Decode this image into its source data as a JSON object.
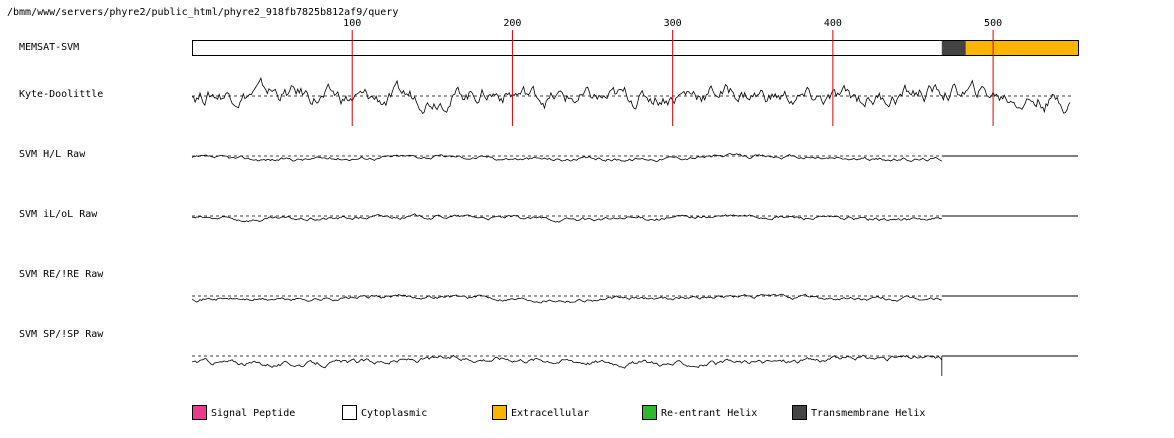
{
  "chart_data": {
    "type": "line",
    "path_label": "/bmm/www/servers/phyre2/public_html/phyre2_918fb7825b812af9/query",
    "x_ticks": [
      100,
      200,
      300,
      400,
      500
    ],
    "x_range": [
      0,
      553
    ],
    "memsat": {
      "label": "MEMSAT-SVM",
      "segments": [
        {
          "type": "Cytoplasmic",
          "start": 1,
          "end": 468
        },
        {
          "type": "Transmembrane Helix",
          "start": 469,
          "end": 483
        },
        {
          "type": "Extracellular",
          "start": 484,
          "end": 553
        }
      ]
    },
    "tracks": [
      {
        "name": "Kyte-Doolittle",
        "end": 548,
        "amp": 9,
        "scale": 1,
        "flat_after": false
      },
      {
        "name": "SVM H/L Raw",
        "end": 468,
        "amp": 3,
        "scale": 2,
        "flat_after": true
      },
      {
        "name": "SVM iL/oL Raw",
        "end": 468,
        "amp": 3,
        "scale": 3,
        "flat_after": true
      },
      {
        "name": "SVM RE/!RE Raw",
        "end": 468,
        "amp": 3,
        "scale": 4,
        "flat_after": true
      },
      {
        "name": "SVM SP/!SP Raw",
        "end": 468,
        "amp": 4,
        "scale": 5,
        "flat_after": true
      }
    ],
    "legend": [
      {
        "label": "Signal Peptide",
        "color": "#ee3a8c"
      },
      {
        "label": "Cytoplasmic",
        "color": "#ffffff"
      },
      {
        "label": "Extracellular",
        "color": "#ffb400"
      },
      {
        "label": "Re-entrant Helix",
        "color": "#2eb82e"
      },
      {
        "label": "Transmembrane Helix",
        "color": "#444444"
      }
    ]
  }
}
